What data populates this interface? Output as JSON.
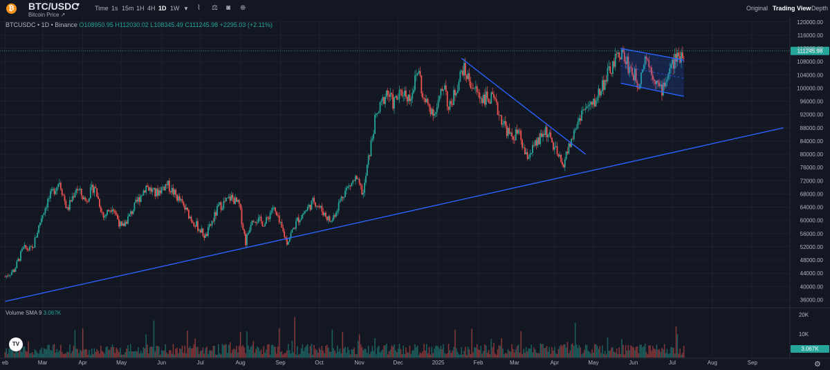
{
  "header": {
    "symbol": "BTC/USDC",
    "subtitle": "Bitcoin Price ↗",
    "timeframes": [
      "Time",
      "1s",
      "15m",
      "1H",
      "4H",
      "1D",
      "1W"
    ],
    "active_timeframe": "1D",
    "views": [
      "Original",
      "Trading View",
      "Depth"
    ],
    "active_view": "Trading View"
  },
  "legend": {
    "instrument": "BTCUSDC • 1D • Binance",
    "open": "O108950.95",
    "high": "H112030.02",
    "low": "L108345.49",
    "close": "C111245.98",
    "change": "+2295.03 (+2.11%)"
  },
  "volume_legend": {
    "label": "Volume SMA 9",
    "value": "3.067K"
  },
  "icons": {
    "coin": "bitcoin-icon",
    "tradingview": "tradingview-logo",
    "tools": [
      "indicator-icon",
      "compare-icon",
      "camera-icon",
      "add-icon"
    ],
    "settings": "settings-icon"
  },
  "colors": {
    "up": "#26a69a",
    "down": "#ef5350",
    "trendline": "#2962ff",
    "price_tag": "#26a69a",
    "background": "#131722"
  },
  "chart_data": {
    "type": "candlestick",
    "interval": "1D",
    "current_price": 111245.98,
    "current_price_label": "111245.98",
    "y_ticks": [
      36000,
      40000,
      44000,
      48000,
      52000,
      56000,
      60000,
      64000,
      68000,
      72000,
      76000,
      80000,
      84000,
      88000,
      92000,
      96000,
      100000,
      104000,
      108000,
      112000,
      116000,
      120000
    ],
    "y_tick_labels": [
      "36000.00",
      "40000.00",
      "44000.00",
      "48000.00",
      "52000.00",
      "56000.00",
      "60000.00",
      "64000.00",
      "68000.00",
      "72000.00",
      "76000.00",
      "80000.00",
      "84000.00",
      "88000.00",
      "92000.00",
      "96000.00",
      "100000.00",
      "104000.00",
      "108000.00",
      "112000.00",
      "116000.00",
      "120000.00"
    ],
    "ylim": [
      34000,
      121000
    ],
    "x_ticks": [
      {
        "label": "Feb",
        "date": "2024-02-01"
      },
      {
        "label": "Mar",
        "date": "2024-03-01"
      },
      {
        "label": "Apr",
        "date": "2024-04-01"
      },
      {
        "label": "May",
        "date": "2024-05-01"
      },
      {
        "label": "Jun",
        "date": "2024-06-01"
      },
      {
        "label": "Jul",
        "date": "2024-07-01"
      },
      {
        "label": "Aug",
        "date": "2024-08-01"
      },
      {
        "label": "Sep",
        "date": "2024-09-01"
      },
      {
        "label": "Oct",
        "date": "2024-10-01"
      },
      {
        "label": "Nov",
        "date": "2024-11-01"
      },
      {
        "label": "Dec",
        "date": "2024-12-01"
      },
      {
        "label": "2025",
        "date": "2025-01-01"
      },
      {
        "label": "Feb",
        "date": "2025-02-01"
      },
      {
        "label": "Mar",
        "date": "2025-03-01"
      },
      {
        "label": "Apr",
        "date": "2025-04-01"
      },
      {
        "label": "May",
        "date": "2025-05-01"
      },
      {
        "label": "Jun",
        "date": "2025-06-01"
      },
      {
        "label": "Jul",
        "date": "2025-07-01"
      },
      {
        "label": "Aug",
        "date": "2025-08-01"
      },
      {
        "label": "Sep",
        "date": "2025-09-01"
      }
    ],
    "x_tick_display": [
      "eb",
      "Mar",
      "Apr",
      "May",
      "Jun",
      "Jul",
      "Aug",
      "Sep",
      "Oct",
      "Nov",
      "Dec",
      "2025",
      "Feb",
      "Mar",
      "Apr",
      "May",
      "Jun",
      "Jul",
      "Aug",
      "Sep"
    ],
    "close_path": [
      [
        "2024-02-01",
        43000
      ],
      [
        "2024-02-08",
        45000
      ],
      [
        "2024-02-15",
        51500
      ],
      [
        "2024-02-22",
        51200
      ],
      [
        "2024-02-29",
        61000
      ],
      [
        "2024-03-05",
        66000
      ],
      [
        "2024-03-14",
        72000
      ],
      [
        "2024-03-20",
        63000
      ],
      [
        "2024-03-27",
        70000
      ],
      [
        "2024-04-03",
        66000
      ],
      [
        "2024-04-10",
        70500
      ],
      [
        "2024-04-17",
        61000
      ],
      [
        "2024-04-24",
        64500
      ],
      [
        "2024-05-01",
        57500
      ],
      [
        "2024-05-08",
        62000
      ],
      [
        "2024-05-20",
        70500
      ],
      [
        "2024-05-27",
        68000
      ],
      [
        "2024-06-05",
        71000
      ],
      [
        "2024-06-15",
        66000
      ],
      [
        "2024-06-24",
        60500
      ],
      [
        "2024-07-05",
        55000
      ],
      [
        "2024-07-15",
        64000
      ],
      [
        "2024-07-25",
        67000
      ],
      [
        "2024-07-31",
        64500
      ],
      [
        "2024-08-05",
        53500
      ],
      [
        "2024-08-10",
        61000
      ],
      [
        "2024-08-20",
        59000
      ],
      [
        "2024-08-26",
        64000
      ],
      [
        "2024-09-06",
        53500
      ],
      [
        "2024-09-14",
        60000
      ],
      [
        "2024-09-27",
        66000
      ],
      [
        "2024-10-10",
        59500
      ],
      [
        "2024-10-20",
        68500
      ],
      [
        "2024-10-29",
        72500
      ],
      [
        "2024-11-04",
        68000
      ],
      [
        "2024-11-07",
        76000
      ],
      [
        "2024-11-13",
        90000
      ],
      [
        "2024-11-22",
        99000
      ],
      [
        "2024-11-27",
        95500
      ],
      [
        "2024-12-05",
        99000
      ],
      [
        "2024-12-10",
        97000
      ],
      [
        "2024-12-17",
        106000
      ],
      [
        "2024-12-20",
        96500
      ],
      [
        "2024-12-30",
        92500
      ],
      [
        "2025-01-06",
        102000
      ],
      [
        "2025-01-09",
        93000
      ],
      [
        "2025-01-20",
        106000
      ],
      [
        "2025-01-27",
        101000
      ],
      [
        "2025-02-02",
        97500
      ],
      [
        "2025-02-12",
        96500
      ],
      [
        "2025-02-26",
        85000
      ],
      [
        "2025-03-04",
        86500
      ],
      [
        "2025-03-10",
        79000
      ],
      [
        "2025-03-20",
        84000
      ],
      [
        "2025-03-25",
        87500
      ],
      [
        "2025-04-07",
        76500
      ],
      [
        "2025-04-22",
        93000
      ],
      [
        "2025-05-01",
        95000
      ],
      [
        "2025-05-08",
        101000
      ],
      [
        "2025-05-22",
        111000
      ],
      [
        "2025-06-05",
        101500
      ],
      [
        "2025-06-10",
        110000
      ],
      [
        "2025-06-22",
        99000
      ],
      [
        "2025-07-02",
        108000
      ],
      [
        "2025-07-10",
        111245.98
      ]
    ],
    "series": [
      {
        "name": "Volume SMA 9",
        "last_value": "3.067K"
      }
    ],
    "volume": {
      "y_tick_labels": [
        "20K",
        "10K"
      ],
      "last_value_label": "3.067K"
    },
    "annotations": [
      {
        "type": "trendline",
        "points": [
          [
            "2024-02-01",
            35500
          ],
          [
            "2025-09-25",
            88000
          ]
        ]
      },
      {
        "type": "trendline",
        "points": [
          [
            "2025-01-19",
            109000
          ],
          [
            "2025-04-25",
            80000
          ]
        ]
      },
      {
        "type": "channel",
        "upper": [
          [
            "2025-05-22",
            112000
          ],
          [
            "2025-07-10",
            108500
          ]
        ],
        "lower": [
          [
            "2025-05-22",
            101500
          ],
          [
            "2025-07-10",
            97500
          ]
        ]
      },
      {
        "type": "price_line",
        "value": 111245.98
      }
    ]
  }
}
